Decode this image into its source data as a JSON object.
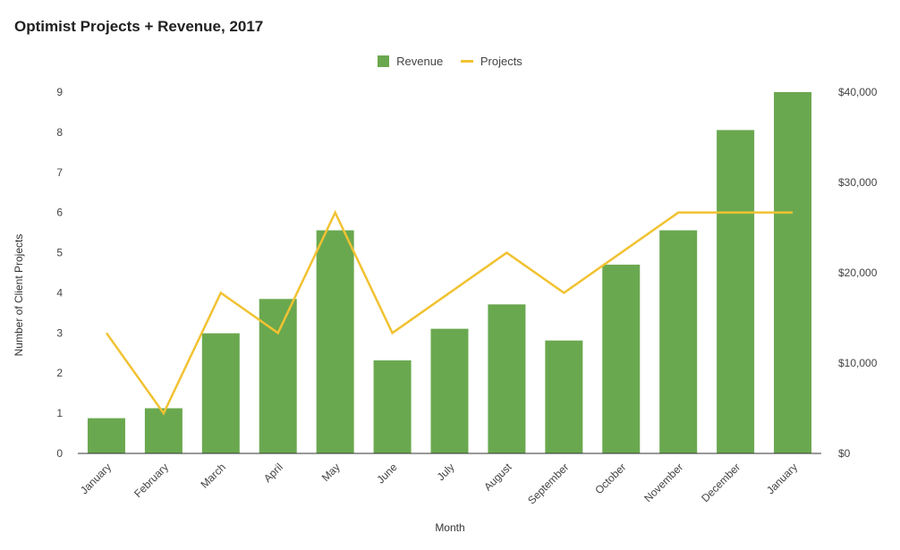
{
  "chart_data": {
    "type": "bar",
    "title": "Optimist Projects + Revenue, 2017",
    "xlabel": "Month",
    "ylabel": "Number of Client Projects",
    "y2label": "",
    "categories": [
      "January",
      "February",
      "March",
      "April",
      "May",
      "June",
      "July",
      "August",
      "September",
      "October",
      "November",
      "December",
      "January"
    ],
    "series": [
      {
        "name": "Revenue",
        "type": "bar",
        "axis": "right",
        "color": "#6aa84f",
        "values": [
          3900,
          5000,
          13300,
          17100,
          24700,
          10300,
          13800,
          16500,
          12500,
          20900,
          24700,
          35800,
          40000
        ]
      },
      {
        "name": "Projects",
        "type": "line",
        "axis": "left",
        "color": "#f1c232",
        "values": [
          3,
          1,
          4,
          3,
          6,
          3,
          4,
          5,
          4,
          5,
          6,
          6,
          6
        ]
      }
    ],
    "ylim": [
      0,
      9
    ],
    "y2lim": [
      0,
      40000
    ],
    "yticks": [
      "0",
      "1",
      "2",
      "3",
      "4",
      "5",
      "6",
      "7",
      "8",
      "9"
    ],
    "y2ticks": [
      "$0",
      "$10,000",
      "$20,000",
      "$30,000",
      "$40,000"
    ],
    "y2tick_values": [
      0,
      10000,
      20000,
      30000,
      40000
    ],
    "legend_position": "top-center",
    "grid": false
  }
}
